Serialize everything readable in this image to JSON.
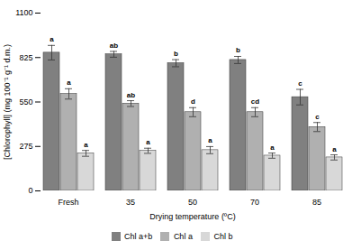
{
  "chart_data": {
    "type": "bar",
    "categories": [
      "Fresh",
      "35",
      "50",
      "70",
      "85"
    ],
    "series": [
      {
        "name": "Chl a+b",
        "color": "#808080",
        "values": [
          855,
          845,
          790,
          810,
          580
        ],
        "errors": [
          45,
          18,
          22,
          22,
          48
        ],
        "letters": [
          "a",
          "ab",
          "b",
          "b",
          "c"
        ]
      },
      {
        "name": "Chl a",
        "color": "#b0b0b0",
        "values": [
          600,
          540,
          487,
          487,
          395
        ],
        "errors": [
          32,
          18,
          28,
          28,
          28
        ],
        "letters": [
          "a",
          "ab",
          "d",
          "cd",
          "c"
        ]
      },
      {
        "name": "Chl b",
        "color": "#d8d8d8",
        "values": [
          232,
          248,
          252,
          218,
          207
        ],
        "errors": [
          18,
          16,
          22,
          16,
          16
        ],
        "letters": [
          "a",
          "a",
          "a",
          "a",
          "a"
        ]
      }
    ],
    "xlabel": "Drying temperature (ºC)",
    "ylabel": "[Chlorophyll] (mg 100⁻¹ g⁻¹ d.m.)",
    "ylim": [
      0,
      1100
    ],
    "yticks": [
      0,
      275,
      550,
      825,
      1100
    ],
    "legend": "bottom"
  }
}
